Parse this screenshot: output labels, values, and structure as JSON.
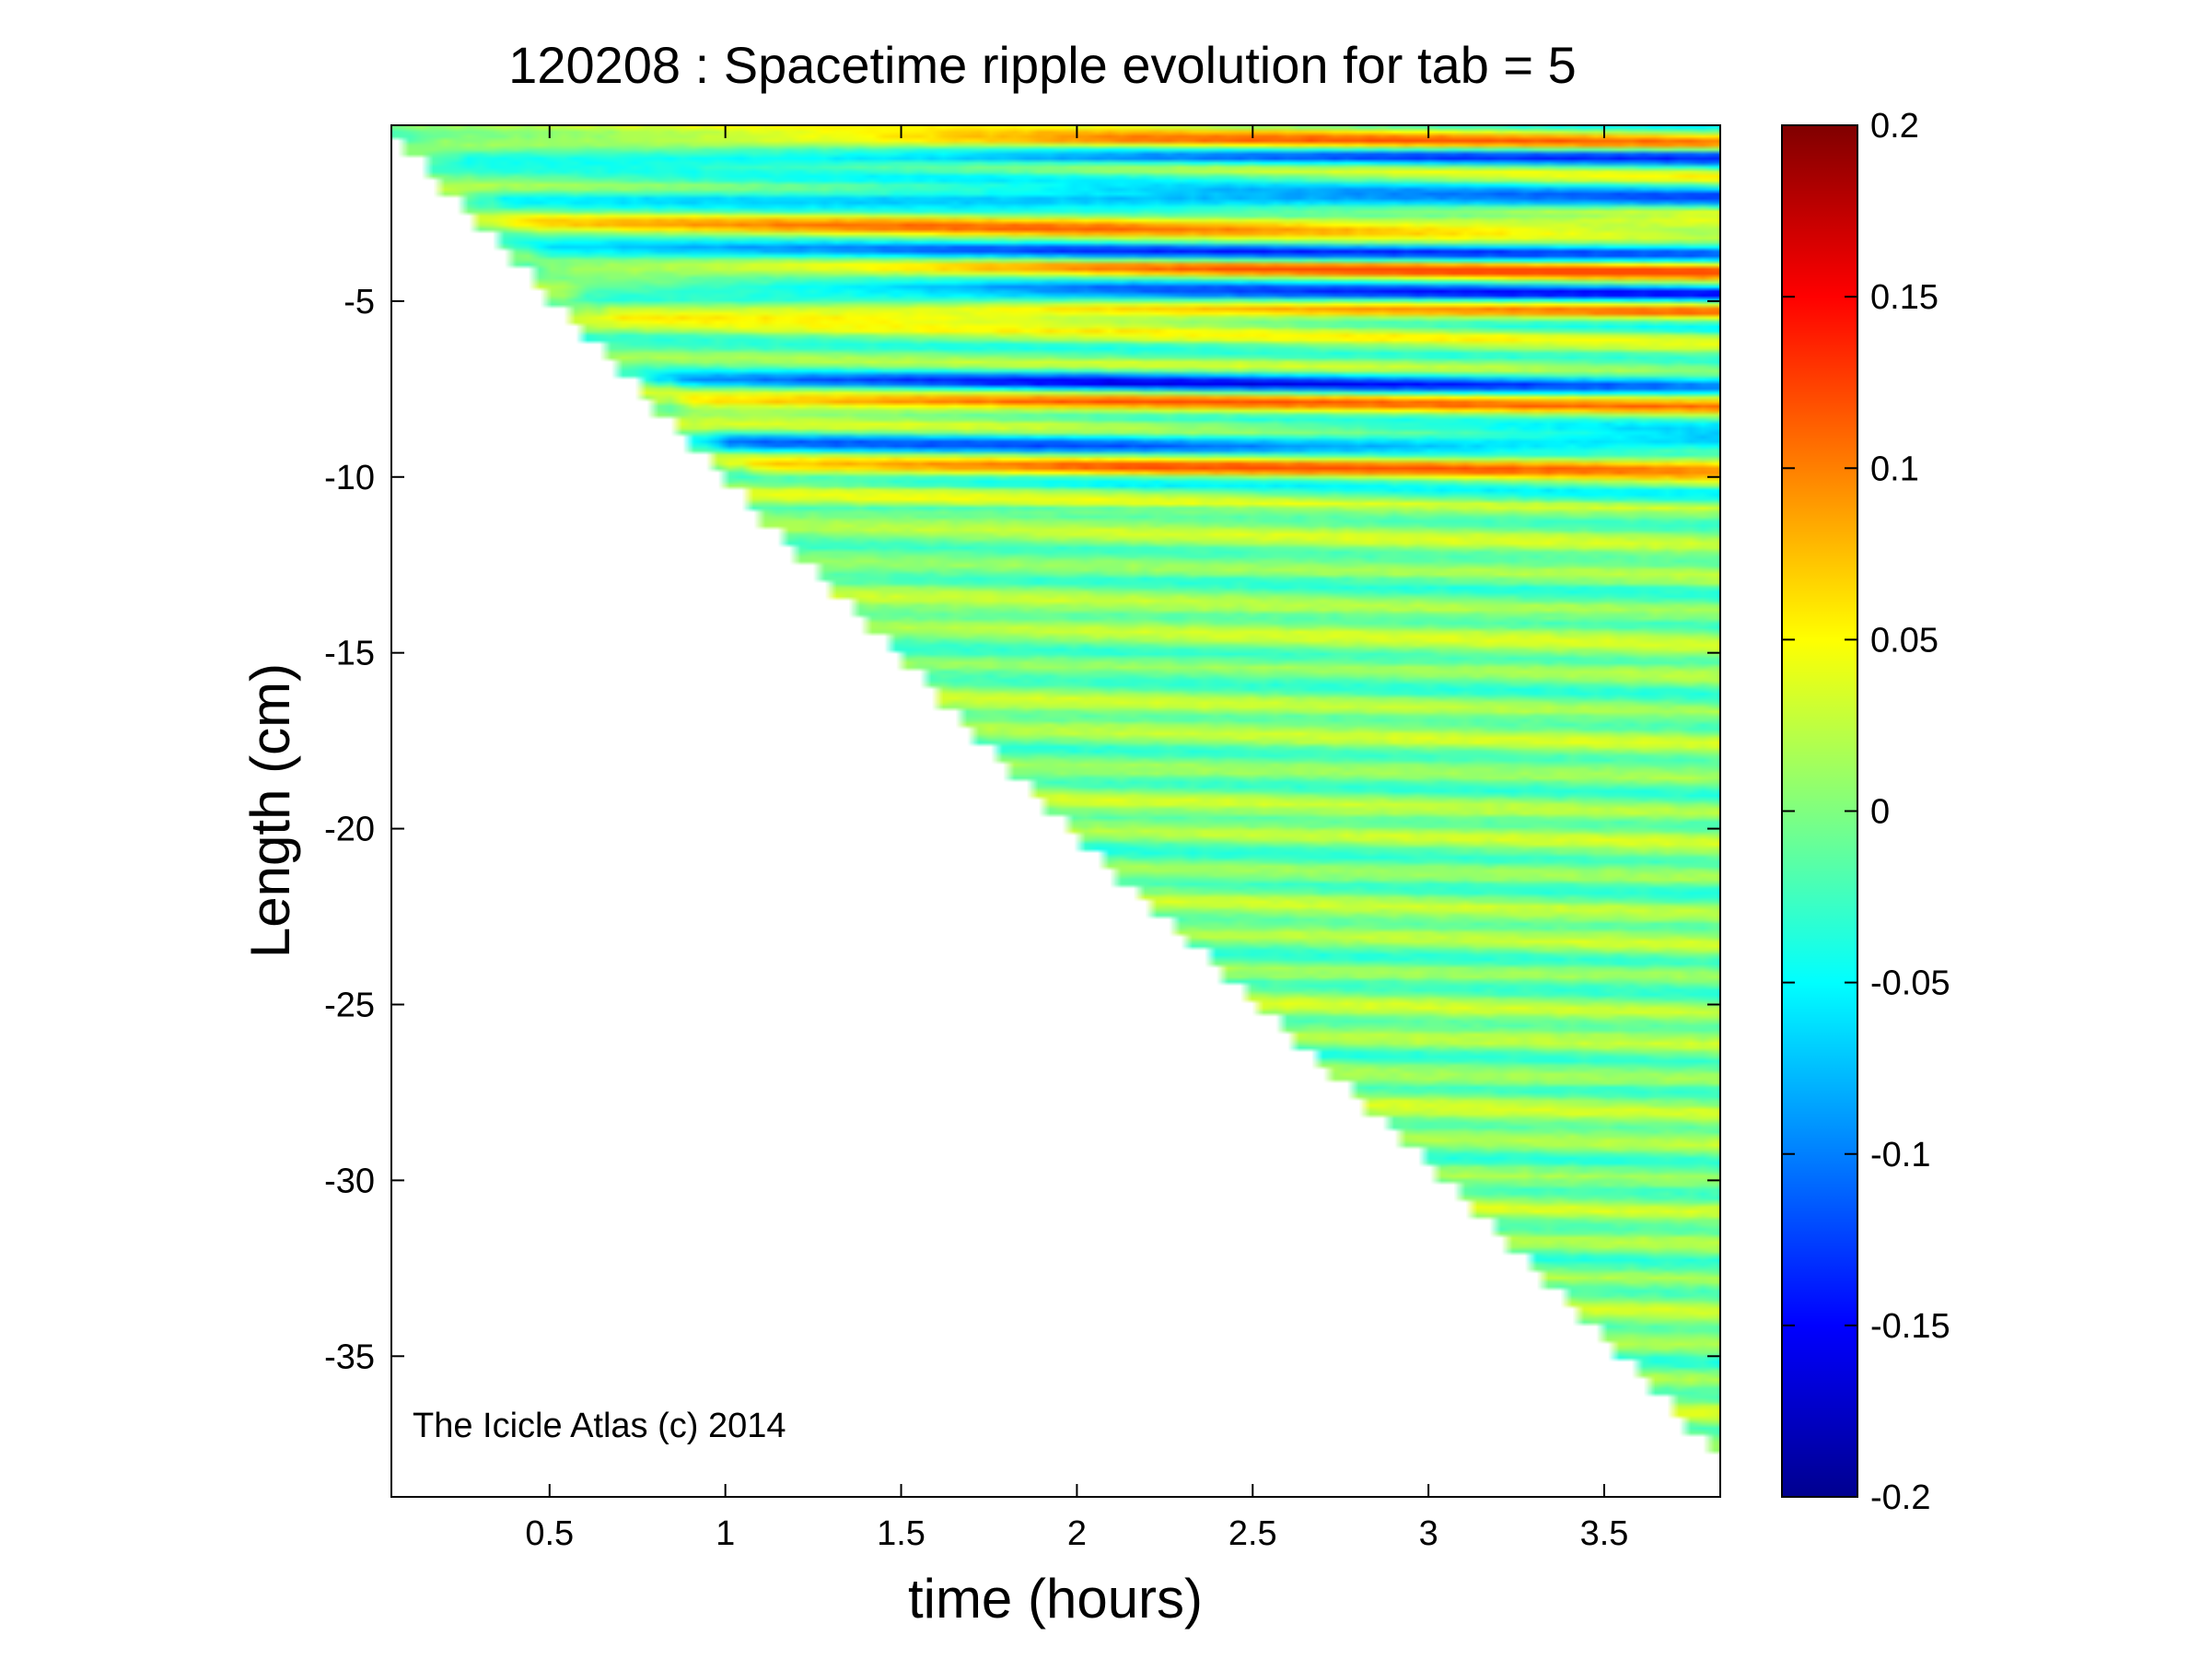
{
  "chart_data": {
    "type": "heatmap",
    "title": "120208 : Spacetime ripple evolution for tab = 5",
    "xlabel": "time (hours)",
    "ylabel": "Length (cm)",
    "xlim": [
      0.05,
      3.83
    ],
    "ylim": [
      -39.0,
      0.0
    ],
    "xticks": [
      0.5,
      1,
      1.5,
      2,
      2.5,
      3,
      3.5
    ],
    "xtick_labels": [
      "0.5",
      "1",
      "1.5",
      "2",
      "2.5",
      "3",
      "3.5"
    ],
    "yticks": [
      -5,
      -10,
      -15,
      -20,
      -25,
      -30,
      -35
    ],
    "ytick_labels": [
      "-5",
      "-10",
      "-15",
      "-20",
      "-25",
      "-30",
      "-35"
    ],
    "colorbar": {
      "colormap": "jet",
      "clim": [
        -0.2,
        0.2
      ],
      "ticks": [
        0.2,
        0.15,
        0.1,
        0.05,
        0,
        -0.05,
        -0.1,
        -0.15,
        -0.2
      ],
      "tick_labels": [
        "0.2",
        "0.15",
        "0.1",
        "0.05",
        "0",
        "-0.05",
        "-0.1",
        "-0.15",
        "-0.2"
      ]
    },
    "data_extent": {
      "description": "ripple amplitude defined for length >= -10.2 * time (icicle grows over time)",
      "tip_length_at_time": [
        {
          "time": 0.05,
          "length": -0.4
        },
        {
          "time": 1.0,
          "length": -10.3
        },
        {
          "time": 2.0,
          "length": -20.5
        },
        {
          "time": 3.0,
          "length": -29.8
        },
        {
          "time": 3.8,
          "length": -37.9
        }
      ]
    },
    "ripple_bands": {
      "wavelength_cm": 0.95,
      "strong_red_bands_length": [
        -0.5,
        -2.8,
        -4.1,
        -5.3,
        -7.9,
        -9.7
      ],
      "strong_blue_bands_length": [
        -0.9,
        -2.1,
        -3.6,
        -4.8,
        -7.3,
        -9.0
      ],
      "peak_amplitude": 0.12,
      "min_amplitude": -0.17
    },
    "grid": false,
    "grid_resolution": {
      "time_steps": 112,
      "length_steps": 310
    }
  },
  "watermark": "The Icicle Atlas (c) 2014"
}
